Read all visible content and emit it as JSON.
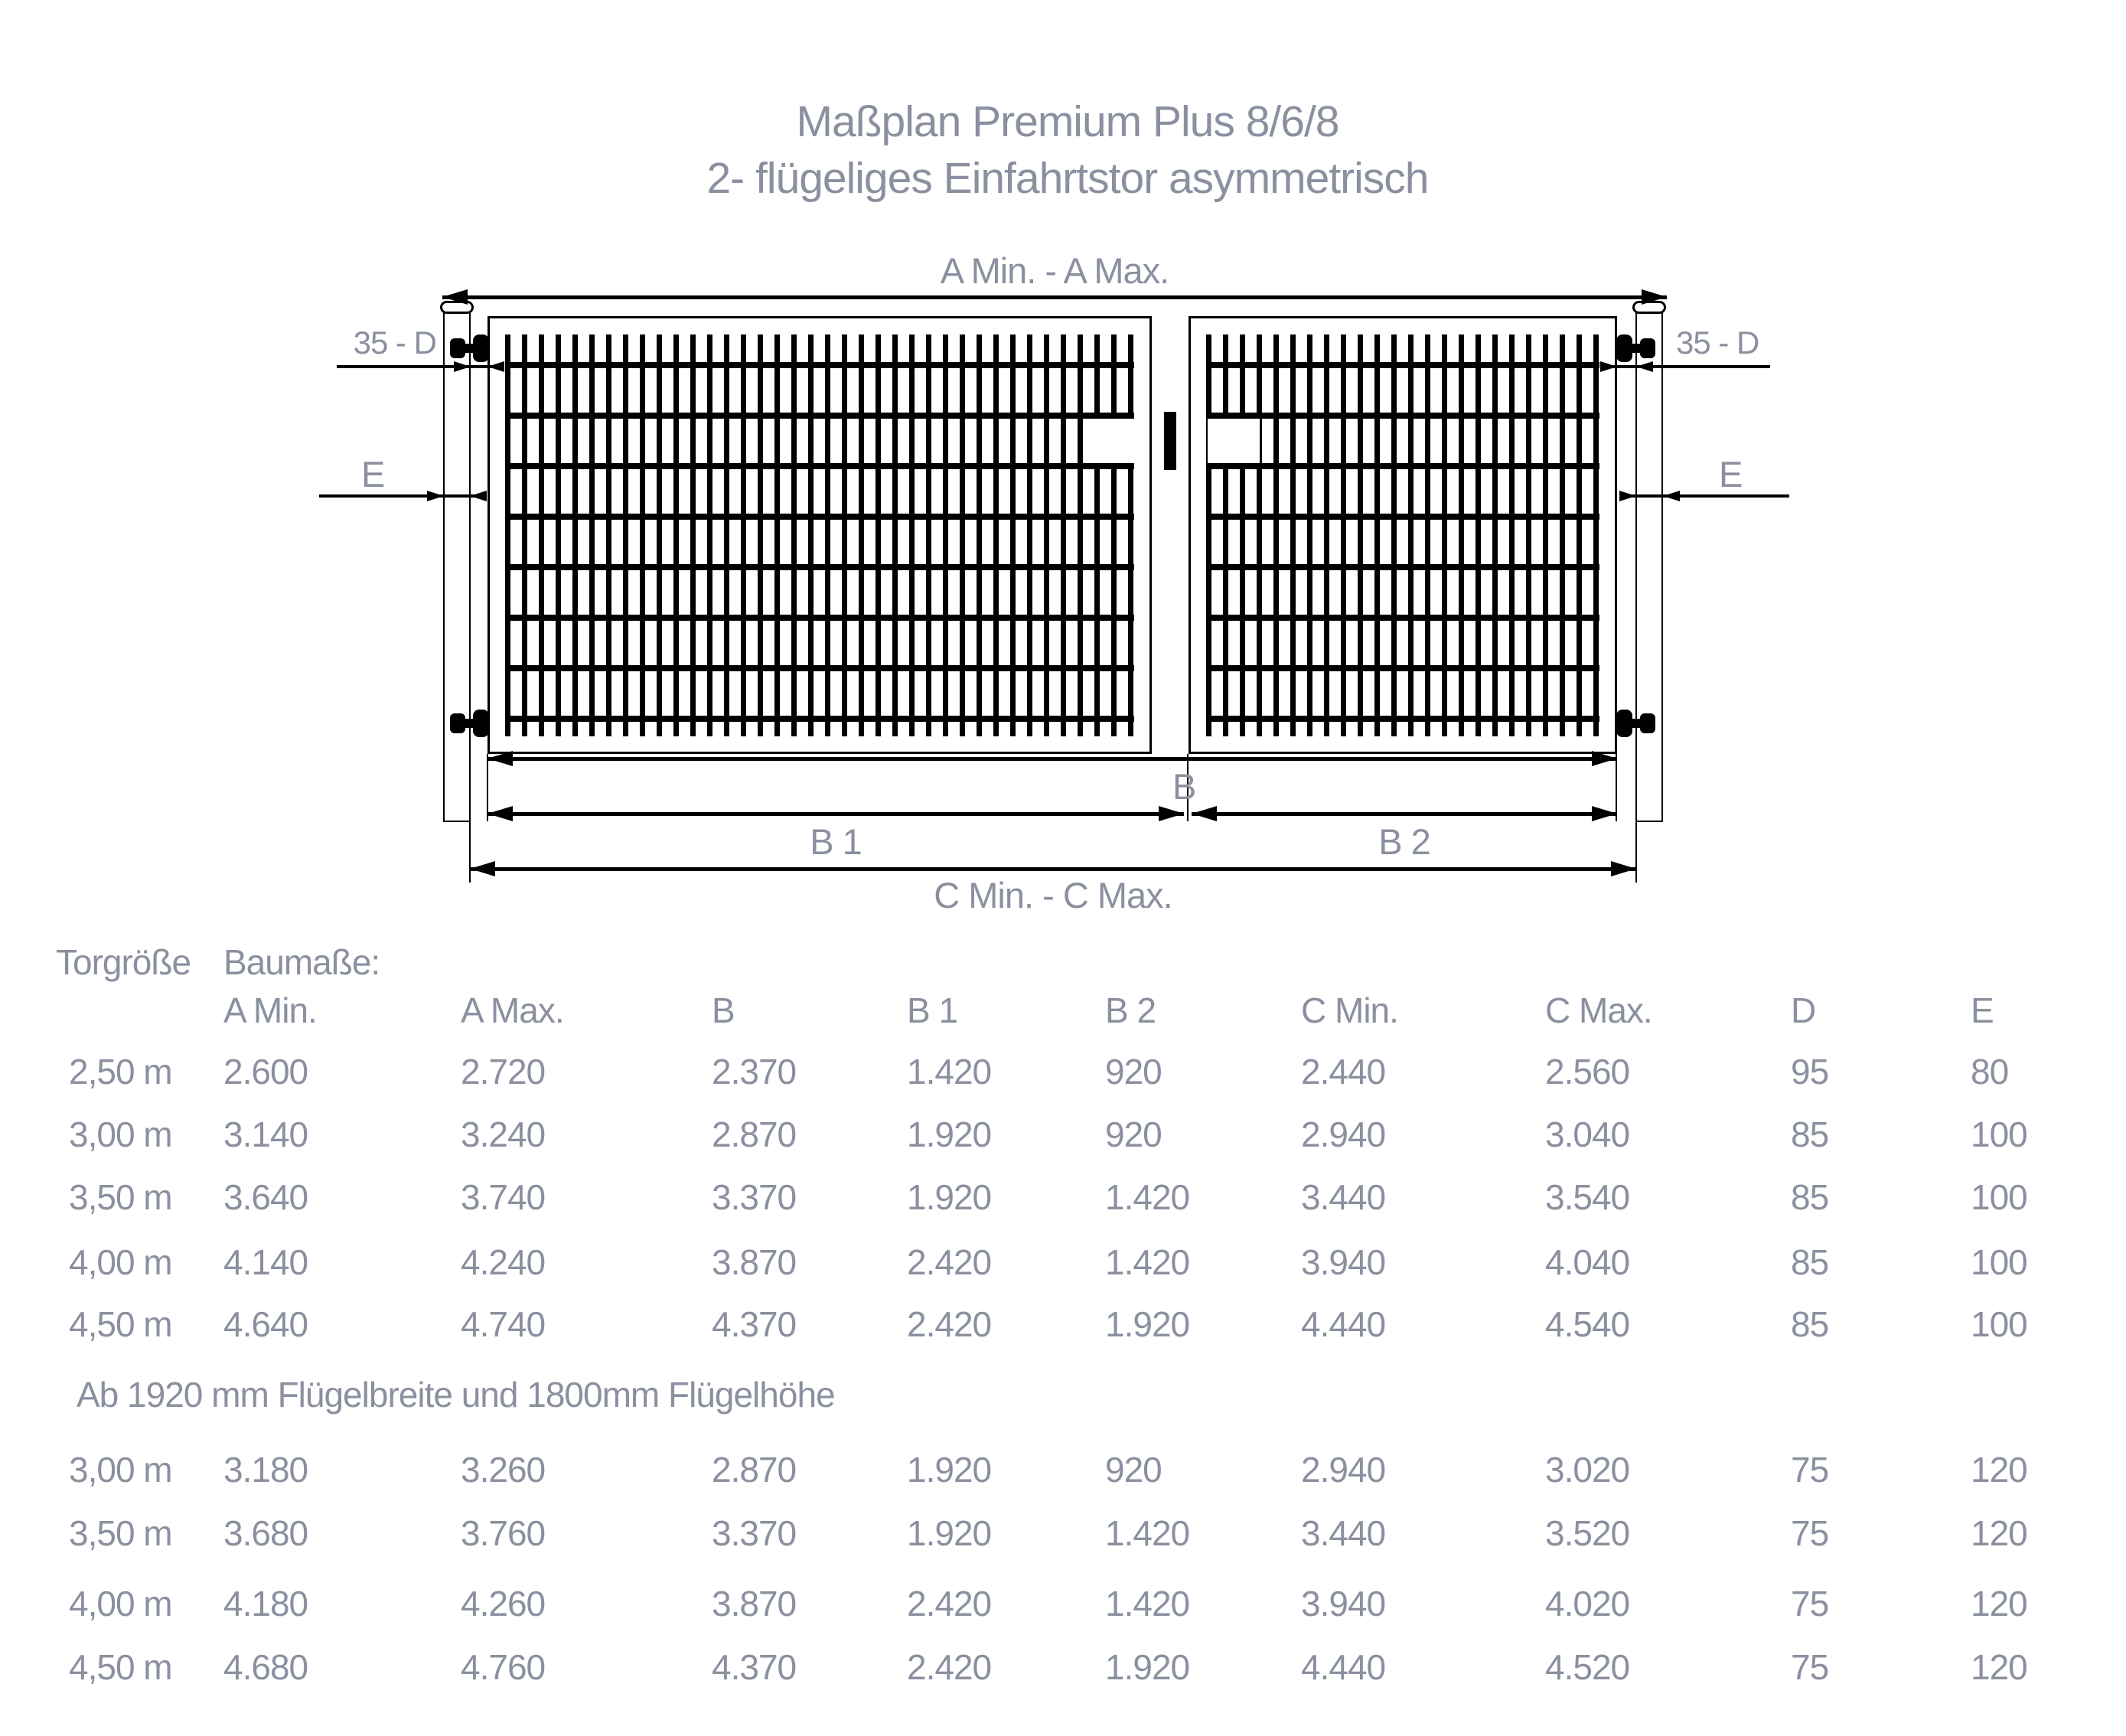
{
  "title": {
    "line1": "Maßplan Premium Plus 8/6/8",
    "line2": "2- flügeliges Einfahrtstor asymmetrisch"
  },
  "diagram": {
    "dim_a": "A Min. - A Max.",
    "dim_35d_left": "35 - D",
    "dim_35d_right": "35 - D",
    "dim_e_left": "E",
    "dim_e_right": "E",
    "dim_b": "B",
    "dim_b1": "B 1",
    "dim_b2": "B 2",
    "dim_c": "C Min. - C Max."
  },
  "table": {
    "group_header": {
      "col1": "Torgröße",
      "col2": "Baumaße:"
    },
    "columns": [
      "A Min.",
      "A Max.",
      "B",
      "B 1",
      "B 2",
      "C Min.",
      "C Max.",
      "D",
      "E"
    ],
    "rows_block1": [
      {
        "size": "2,50 m",
        "values": [
          "2.600",
          "2.720",
          "2.370",
          "1.420",
          "920",
          "2.440",
          "2.560",
          "95",
          "80"
        ]
      },
      {
        "size": "3,00 m",
        "values": [
          "3.140",
          "3.240",
          "2.870",
          "1.920",
          "920",
          "2.940",
          "3.040",
          "85",
          "100"
        ]
      },
      {
        "size": "3,50 m",
        "values": [
          "3.640",
          "3.740",
          "3.370",
          "1.920",
          "1.420",
          "3.440",
          "3.540",
          "85",
          "100"
        ]
      },
      {
        "size": "4,00 m",
        "values": [
          "4.140",
          "4.240",
          "3.870",
          "2.420",
          "1.420",
          "3.940",
          "4.040",
          "85",
          "100"
        ]
      },
      {
        "size": "4,50 m",
        "values": [
          "4.640",
          "4.740",
          "4.370",
          "2.420",
          "1.920",
          "4.440",
          "4.540",
          "85",
          "100"
        ]
      }
    ],
    "note": "Ab 1920 mm Flügelbreite und 1800mm Flügelhöhe",
    "rows_block2": [
      {
        "size": "3,00 m",
        "values": [
          "3.180",
          "3.260",
          "2.870",
          "1.920",
          "920",
          "2.940",
          "3.020",
          "75",
          "120"
        ]
      },
      {
        "size": "3,50 m",
        "values": [
          "3.680",
          "3.760",
          "3.370",
          "1.920",
          "1.420",
          "3.440",
          "3.520",
          "75",
          "120"
        ]
      },
      {
        "size": "4,00 m",
        "values": [
          "4.180",
          "4.260",
          "3.870",
          "2.420",
          "1.420",
          "3.940",
          "4.020",
          "75",
          "120"
        ]
      },
      {
        "size": "4,50 m",
        "values": [
          "4.680",
          "4.760",
          "4.370",
          "2.420",
          "1.920",
          "4.440",
          "4.520",
          "75",
          "120"
        ]
      }
    ]
  },
  "colors": {
    "text": "#8B90A0",
    "line": "#000000"
  }
}
